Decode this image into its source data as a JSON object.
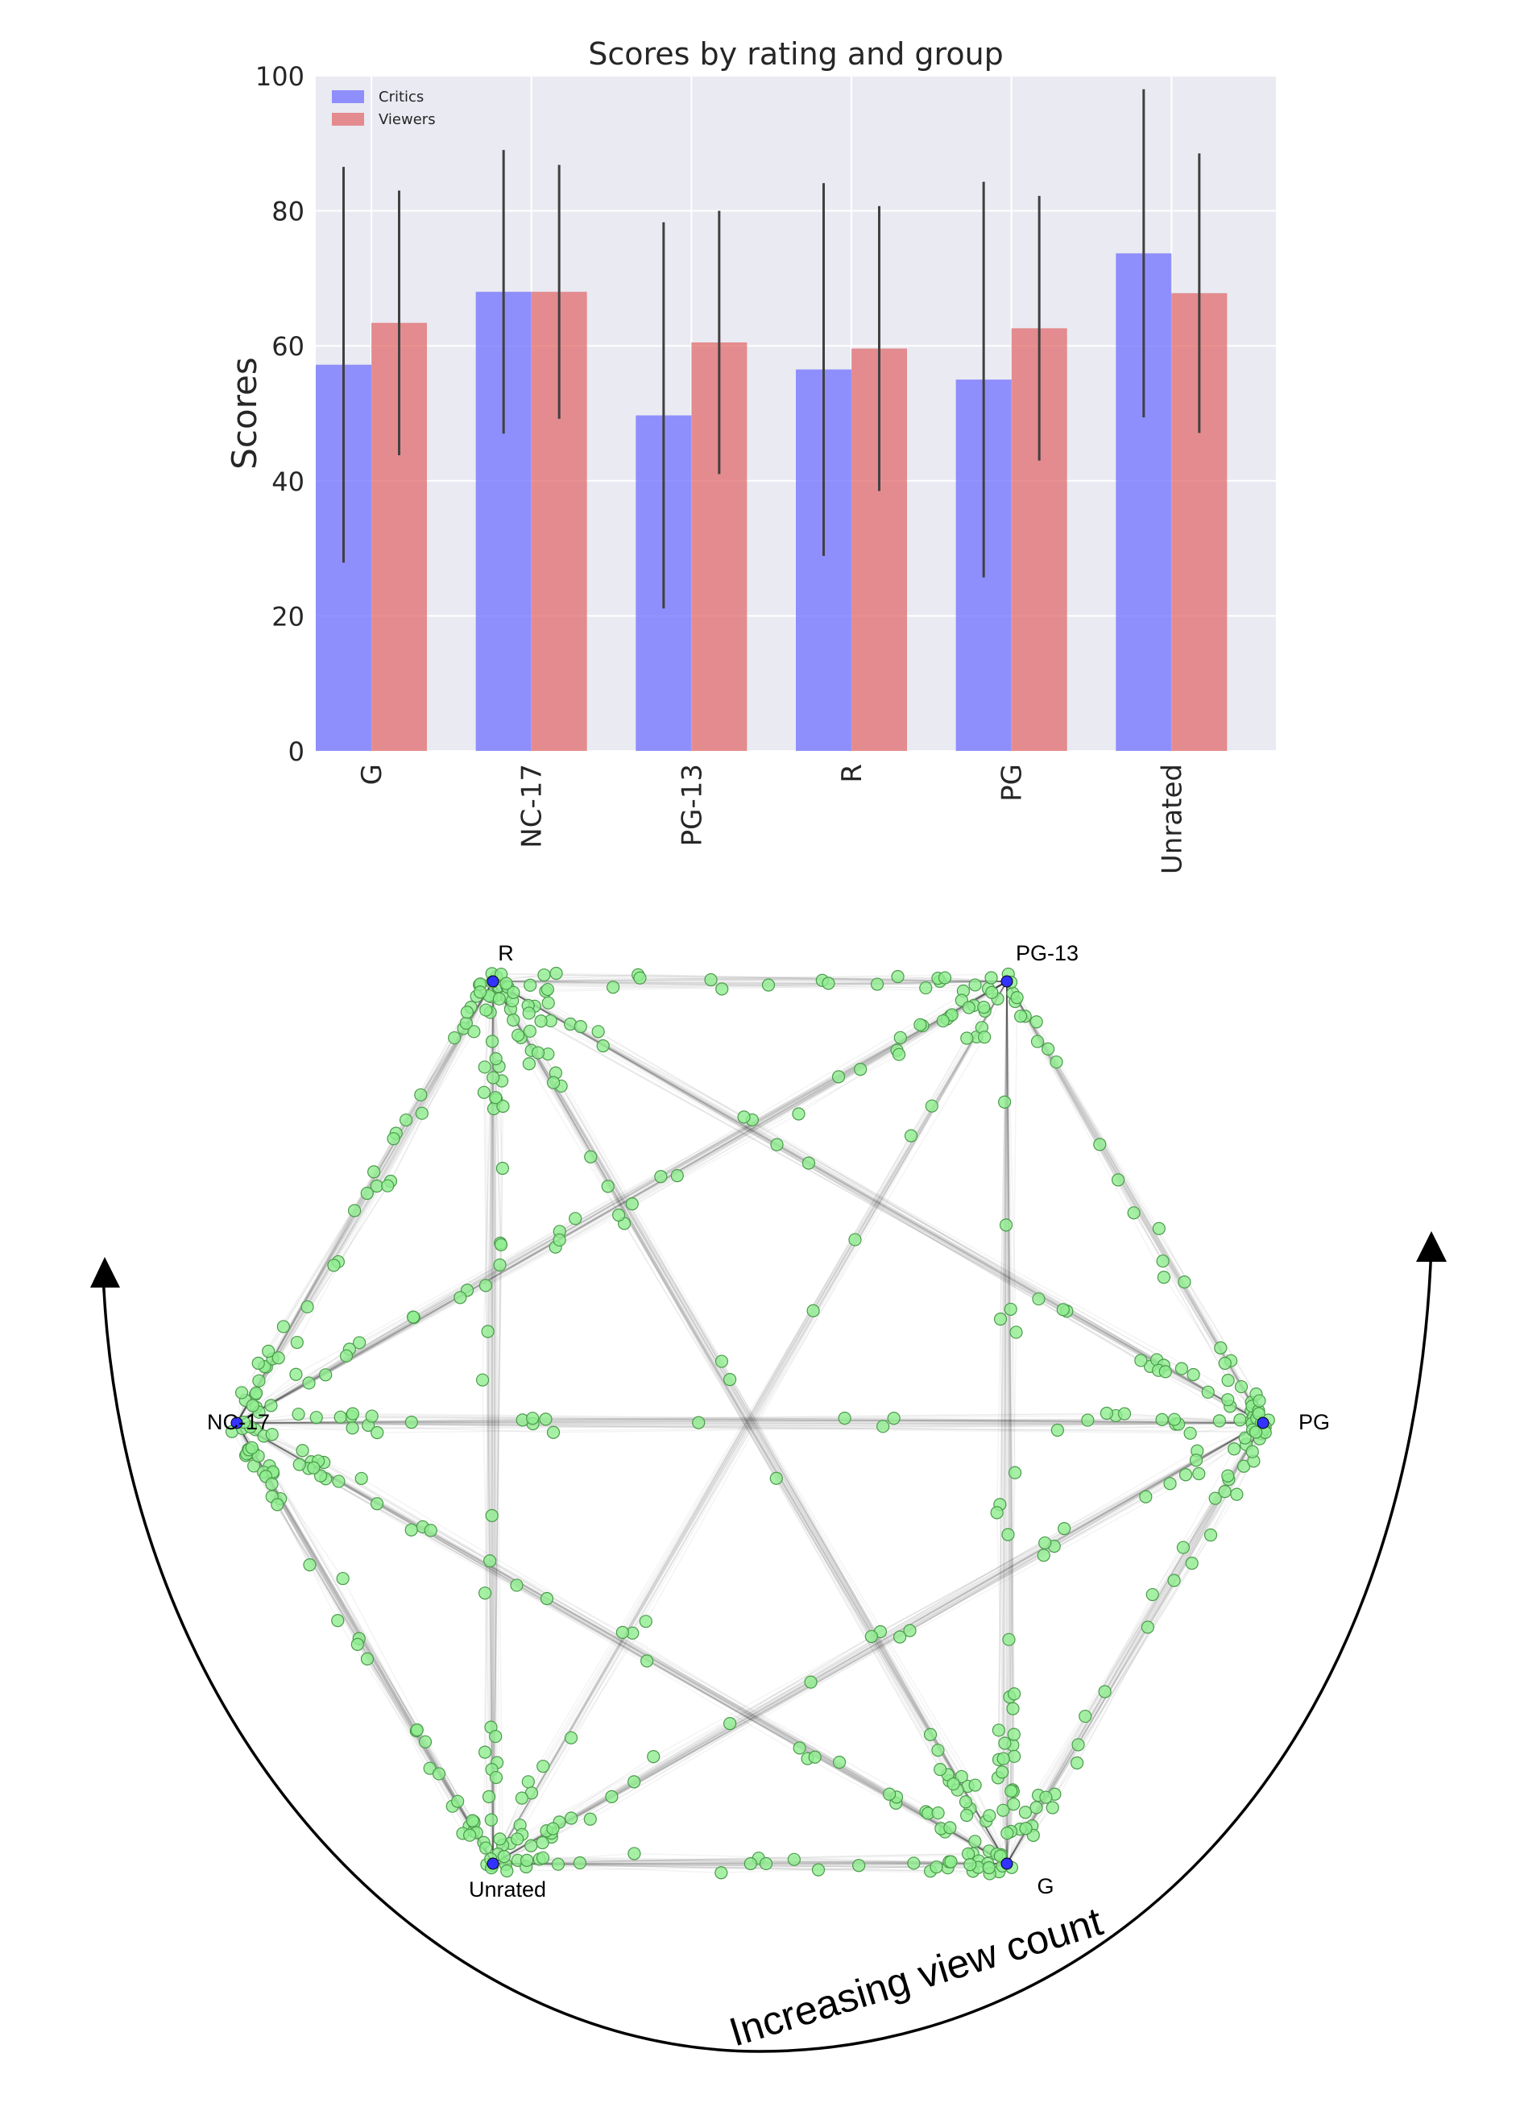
{
  "chart_data": [
    {
      "type": "bar",
      "title": "Scores by rating and group",
      "xlabel": "",
      "ylabel": "Scores",
      "ylim": [
        0,
        100
      ],
      "yticks": [
        "0",
        "20",
        "40",
        "60",
        "80",
        "100"
      ],
      "grid": true,
      "legend_position": "top-left",
      "categories": [
        "G",
        "NC-17",
        "PG-13",
        "R",
        "PG",
        "Unrated"
      ],
      "series": [
        {
          "name": "Critics",
          "color": "#6b6bff",
          "values": [
            57.2,
            68.0,
            49.7,
            56.5,
            55.0,
            73.7
          ],
          "error": [
            29.3,
            21.0,
            28.6,
            27.6,
            29.3,
            24.3
          ]
        },
        {
          "name": "Viewers",
          "color": "#e06666",
          "values": [
            63.4,
            68.0,
            60.5,
            59.6,
            62.6,
            67.8
          ],
          "error": [
            19.6,
            18.8,
            19.5,
            21.1,
            19.6,
            20.7
          ]
        }
      ]
    },
    {
      "type": "network",
      "annotation": "Increasing view count",
      "nodes": [
        {
          "name": "R",
          "color": "#3333ff"
        },
        {
          "name": "PG-13",
          "color": "#3333ff"
        },
        {
          "name": "PG",
          "color": "#3333ff"
        },
        {
          "name": "G",
          "color": "#3333ff"
        },
        {
          "name": "Unrated",
          "color": "#3333ff"
        },
        {
          "name": "NC-17",
          "color": "#3333ff"
        }
      ],
      "point_color": "#90ee90",
      "point_edge_color": "#4a9a4a",
      "edge_color": "#000000"
    }
  ]
}
